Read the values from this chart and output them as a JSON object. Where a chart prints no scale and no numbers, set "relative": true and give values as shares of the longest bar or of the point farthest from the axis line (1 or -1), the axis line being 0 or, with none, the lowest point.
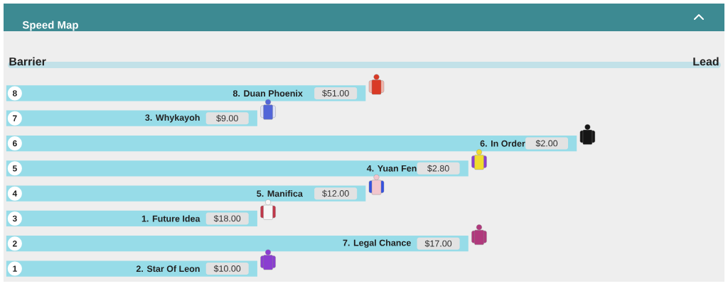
{
  "chart_data": {
    "type": "bar",
    "orientation": "horizontal",
    "relative": true,
    "title": "Speed Map",
    "ylabel": "Barrier",
    "categories": [
      "8",
      "7",
      "6",
      "5",
      "4",
      "3",
      "2",
      "1"
    ],
    "values": [
      0.63,
      0.44,
      1,
      0.81,
      0.63,
      0.44,
      0.81,
      0.44
    ],
    "color": "#97dce8",
    "annotations": [
      {
        "text": "8. Duan Phoenix",
        "x": 0.52,
        "y": "8"
      },
      {
        "text": "$51.00",
        "x": 0.63,
        "y": "8"
      },
      {
        "text": "3. Whykayoh",
        "x": 0.34,
        "y": "7"
      },
      {
        "text": "$9.00",
        "x": 0.44,
        "y": "7"
      },
      {
        "text": "6. In Order",
        "x": 0.91,
        "y": "6"
      },
      {
        "text": "$2.00",
        "x": 1,
        "y": "6"
      },
      {
        "text": "4. Yuan Fen",
        "x": 0.72,
        "y": "5"
      },
      {
        "text": "$2.80",
        "x": 0.81,
        "y": "5"
      },
      {
        "text": "5. Manifica",
        "x": 0.52,
        "y": "4"
      },
      {
        "text": "$12.00",
        "x": 0.63,
        "y": "4"
      },
      {
        "text": "1. Future Idea",
        "x": 0.34,
        "y": "3"
      },
      {
        "text": "$18.00",
        "x": 0.44,
        "y": "3"
      },
      {
        "text": "7. Legal Chance",
        "x": 0.71,
        "y": "2"
      },
      {
        "text": "$17.00",
        "x": 0.81,
        "y": "2"
      },
      {
        "text": "2. Star Of Leon",
        "x": 0.34,
        "y": "1"
      },
      {
        "text": "$10.00",
        "x": 0.44,
        "y": "1"
      },
      "Lead"
    ]
  }
}
